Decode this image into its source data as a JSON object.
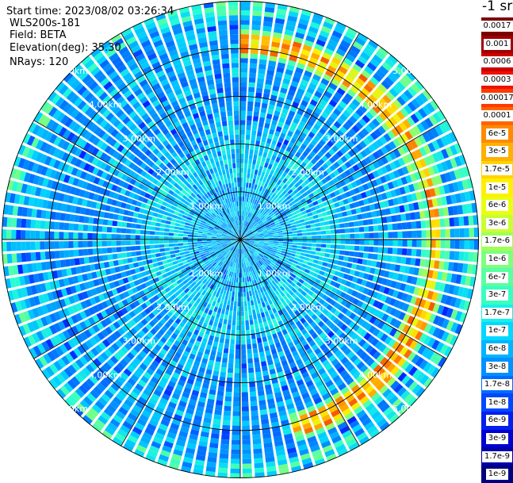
{
  "info": {
    "start_time": "Start time: 2023/08/02 03:26:34",
    "instrument": "WLS200s-181",
    "field": "Field: BETA",
    "elevation": "Elevation(deg): 35.30",
    "nrays": "NRays: 120"
  },
  "colorbar": {
    "unit": "-1 sr",
    "labels": [
      "0.0017",
      "0.001",
      "0.0006",
      "0.0003",
      "0.00017",
      "0.0001",
      "6e-5",
      "3e-5",
      "1.7e-5",
      "1e-5",
      "6e-6",
      "3e-6",
      "1.7e-6",
      "1e-6",
      "6e-7",
      "3e-7",
      "1.7e-7",
      "1e-7",
      "6e-8",
      "3e-8",
      "1.7e-8",
      "1e-8",
      "6e-9",
      "3e-9",
      "1.7e-9",
      "1e-9"
    ],
    "colors": [
      "#7a0000",
      "#a00000",
      "#cc0000",
      "#ee1100",
      "#ff3a00",
      "#ff6400",
      "#ff8a00",
      "#ffb000",
      "#ffd400",
      "#fff000",
      "#e8ff10",
      "#c8ff30",
      "#a0ff58",
      "#7eff7e",
      "#5affa0",
      "#38ffc0",
      "#18f0e8",
      "#00d8ff",
      "#00b4ff",
      "#0090ff",
      "#006cff",
      "#0048ff",
      "#0020ee",
      "#0000d0",
      "#0000a8",
      "#000080"
    ]
  },
  "chart_data": {
    "type": "heatmap",
    "title": "",
    "projection": "polar (PPI scan)",
    "range_rings_km": [
      1.0,
      2.0,
      3.0,
      4.0,
      5.0
    ],
    "ring_labels": [
      "1.00km",
      "2.00km",
      "3.00km",
      "4.00km",
      "5.00km"
    ],
    "max_range_km": 5.0,
    "n_rays": 120,
    "azimuth_gridlines_deg": [
      0,
      30,
      60,
      90,
      120,
      150,
      180,
      210,
      240,
      270,
      300,
      330
    ],
    "colorscale": "jet (log scale)",
    "value_range": [
      1e-09,
      0.0017
    ],
    "features": [
      {
        "description": "enhanced backscatter band",
        "range_km": 4.1,
        "azimuth_deg_from": 0,
        "azimuth_deg_to": 165
      }
    ]
  }
}
